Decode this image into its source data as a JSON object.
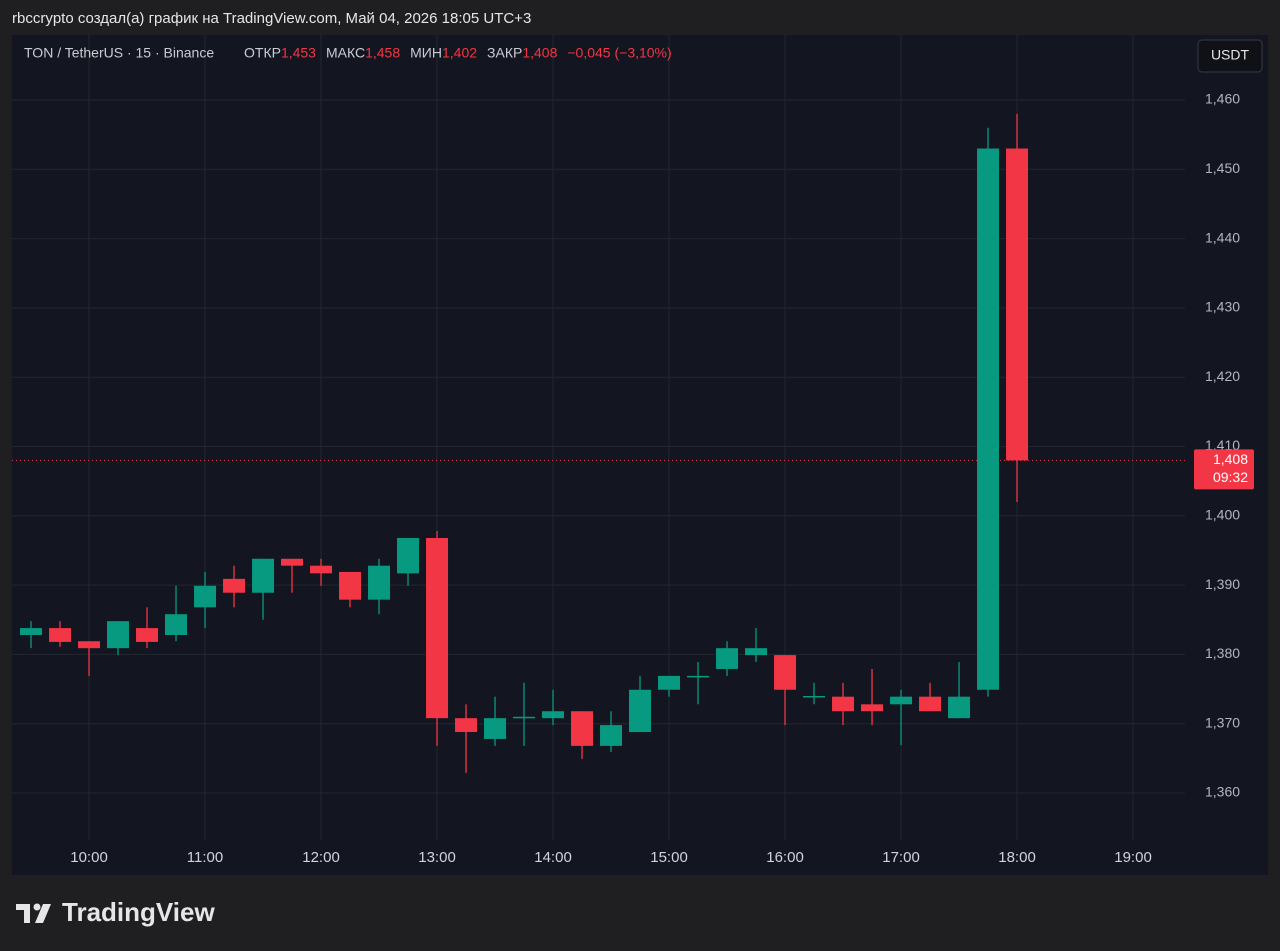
{
  "header": {
    "credit": "rbccrypto создал(а) график на TradingView.com, Май 04, 2026 18:05 UTC+3",
    "brand": "TradingView"
  },
  "chart_data": {
    "type": "candlestick",
    "symbol": "TON / TetherUS · 15 · Binance",
    "ohlc_legend": [
      {
        "label": "ОТКР",
        "text": "1,453"
      },
      {
        "label": "МАКС",
        "text": "1,458"
      },
      {
        "label": "МИН",
        "text": "1,402"
      },
      {
        "label": "ЗАКР",
        "text": "1,408"
      }
    ],
    "change": "−0,045 (−3,10%)",
    "currency": "USDT",
    "last_price": {
      "value": 1.408,
      "label": "1,408"
    },
    "countdown": "09:32",
    "up_color": "#089981",
    "down_color": "#f23645",
    "x": [
      9.5,
      9.75,
      10,
      10.25,
      10.5,
      10.75,
      11,
      11.25,
      11.5,
      11.75,
      12,
      12.25,
      12.5,
      12.75,
      13,
      13.25,
      13.5,
      13.75,
      14,
      14.25,
      14.5,
      14.75,
      15,
      15.25,
      15.5,
      15.75,
      16,
      16.25,
      16.5,
      16.75,
      17,
      17.25,
      17.5,
      17.75,
      18
    ],
    "open": [
      1.3828,
      1.3838,
      1.3819,
      1.3809,
      1.3838,
      1.3828,
      1.3868,
      1.3909,
      1.3889,
      1.3938,
      1.3928,
      1.3919,
      1.3879,
      1.3917,
      1.3968,
      1.3708,
      1.3678,
      1.3708,
      1.3708,
      1.3718,
      1.3668,
      1.3688,
      1.3749,
      1.3768,
      1.3779,
      1.3799,
      1.3799,
      1.3739,
      1.3739,
      1.3728,
      1.3728,
      1.3739,
      1.3708,
      1.3749,
      1.453
    ],
    "high": [
      1.3848,
      1.3848,
      1.3819,
      1.3848,
      1.3868,
      1.3899,
      1.3919,
      1.3928,
      1.3938,
      1.3938,
      1.3938,
      1.3919,
      1.3938,
      1.3968,
      1.3978,
      1.3728,
      1.3739,
      1.3759,
      1.3749,
      1.3718,
      1.3718,
      1.3769,
      1.3769,
      1.3789,
      1.3819,
      1.3838,
      1.3799,
      1.3759,
      1.3759,
      1.3779,
      1.3749,
      1.3759,
      1.3789,
      1.456,
      1.458
    ],
    "low": [
      1.3809,
      1.3811,
      1.3769,
      1.3799,
      1.3809,
      1.3819,
      1.3838,
      1.3868,
      1.385,
      1.3889,
      1.3899,
      1.3868,
      1.3858,
      1.3899,
      1.3668,
      1.3629,
      1.3668,
      1.3668,
      1.3698,
      1.3649,
      1.3659,
      1.3688,
      1.3739,
      1.3728,
      1.3769,
      1.3789,
      1.3698,
      1.3728,
      1.3698,
      1.3698,
      1.3669,
      1.3718,
      1.3708,
      1.3739,
      1.402
    ],
    "close": [
      1.3838,
      1.3818,
      1.3809,
      1.3848,
      1.3818,
      1.3858,
      1.3899,
      1.3889,
      1.3938,
      1.3928,
      1.3917,
      1.3879,
      1.3928,
      1.3968,
      1.3708,
      1.3688,
      1.3708,
      1.371,
      1.3718,
      1.3668,
      1.3698,
      1.3749,
      1.3769,
      1.3769,
      1.3809,
      1.3809,
      1.3749,
      1.374,
      1.3718,
      1.3718,
      1.3739,
      1.3718,
      1.3739,
      1.453,
      1.408
    ],
    "xlim": [
      9.336,
      19.448
    ],
    "xticks": [
      {
        "value": 10,
        "label": "10:00"
      },
      {
        "value": 11,
        "label": "11:00"
      },
      {
        "value": 12,
        "label": "12:00"
      },
      {
        "value": 13,
        "label": "13:00"
      },
      {
        "value": 14,
        "label": "14:00"
      },
      {
        "value": 15,
        "label": "15:00"
      },
      {
        "value": 16,
        "label": "16:00"
      },
      {
        "value": 17,
        "label": "17:00"
      },
      {
        "value": 18,
        "label": "18:00"
      },
      {
        "value": 19,
        "label": "19:00"
      }
    ],
    "ylim": [
      1.35322,
      1.46938
    ],
    "yticks": [
      {
        "value": 1.36,
        "label": "1,360"
      },
      {
        "value": 1.37,
        "label": "1,370"
      },
      {
        "value": 1.38,
        "label": "1,380"
      },
      {
        "value": 1.39,
        "label": "1,390"
      },
      {
        "value": 1.4,
        "label": "1,400"
      },
      {
        "value": 1.41,
        "label": "1,410"
      },
      {
        "value": 1.42,
        "label": "1,420"
      },
      {
        "value": 1.43,
        "label": "1,430"
      },
      {
        "value": 1.44,
        "label": "1,440"
      },
      {
        "value": 1.45,
        "label": "1,450"
      },
      {
        "value": 1.46,
        "label": "1,460"
      }
    ],
    "grid": true
  }
}
